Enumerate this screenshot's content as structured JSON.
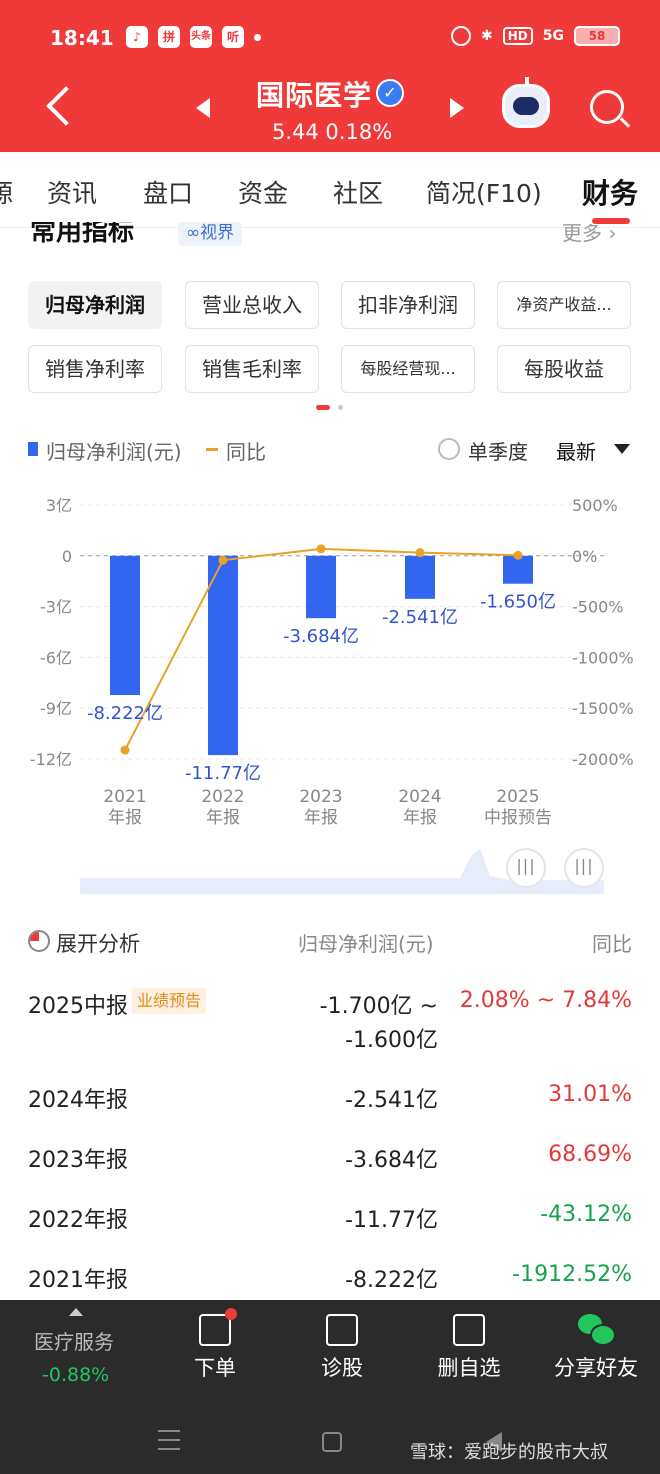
{
  "status": {
    "time": "18:41",
    "apps": [
      "♪",
      "拼",
      "头条",
      "听"
    ],
    "indicators": [
      "HD",
      "5G"
    ],
    "battery": "58"
  },
  "header": {
    "stock_name": "国际医学",
    "price_line": "5.44 0.18%"
  },
  "tabs": [
    "资讯",
    "盘口",
    "资金",
    "社区",
    "简况(F10)",
    "财务"
  ],
  "tab_partial": "源",
  "section": {
    "title": "常用指标",
    "badge": "∞视界",
    "more": "更多 ›"
  },
  "metrics": [
    "归母净利润",
    "营业总收入",
    "扣非净利润",
    "净资产收益...",
    "销售净利率",
    "销售毛利率",
    "每股经营现...",
    "每股收益"
  ],
  "legend": {
    "bar": "归母净利润(元)",
    "line": "同比",
    "quarter": "单季度",
    "latest": "最新"
  },
  "chart_data": {
    "type": "bar",
    "categories": [
      "2021\n年报",
      "2022\n年报",
      "2023\n年报",
      "2024\n年报",
      "2025\n中报预告"
    ],
    "category_years": [
      "2021",
      "2022",
      "2023",
      "2024",
      "2025"
    ],
    "category_labels": [
      "年报",
      "年报",
      "年报",
      "年报",
      "中报预告"
    ],
    "series": [
      {
        "name": "归母净利润(元)",
        "type": "bar",
        "axis": "left",
        "values": [
          -8.222,
          -11.77,
          -3.684,
          -2.541,
          -1.65
        ],
        "labels": [
          "-8.222亿",
          "-11.77亿",
          "-3.684亿",
          "-2.541亿",
          "-1.650亿"
        ],
        "color": "#3366ee"
      },
      {
        "name": "同比",
        "type": "line",
        "axis": "right",
        "values": [
          -1912.52,
          -43.12,
          68.69,
          31.01,
          4.96
        ],
        "color": "#e8a227"
      }
    ],
    "left_ticks": [
      3,
      0,
      -3,
      -6,
      -9,
      -12
    ],
    "left_tick_labels": [
      "3亿",
      "0",
      "-3亿",
      "-6亿",
      "-9亿",
      "-12亿"
    ],
    "right_ticks": [
      500,
      0,
      -500,
      -1000,
      -1500,
      -2000
    ],
    "right_tick_labels": [
      "500%",
      "0%",
      "-500%",
      "-1000%",
      "-1500%",
      "-2000%"
    ],
    "ylim_left": [
      -12,
      3
    ],
    "ylim_right": [
      -2000,
      500
    ]
  },
  "analysis": {
    "title": "展开分析",
    "col_value": "归母净利润(元)",
    "col_yoy": "同比",
    "rows": [
      {
        "label": "2025中报",
        "badge": "业绩预告",
        "value": "-1.700亿 ~",
        "value2": "-1.600亿",
        "yoy": "2.08% ~ 7.84%",
        "trend": "red"
      },
      {
        "label": "2024年报",
        "value": "-2.541亿",
        "yoy": "31.01%",
        "trend": "red"
      },
      {
        "label": "2023年报",
        "value": "-3.684亿",
        "yoy": "68.69%",
        "trend": "red"
      },
      {
        "label": "2022年报",
        "value": "-11.77亿",
        "yoy": "-43.12%",
        "trend": "green"
      },
      {
        "label": "2021年报",
        "value": "-8.222亿",
        "yoy": "-1912.52%",
        "trend": "green"
      }
    ]
  },
  "bottom": {
    "sector_name": "医疗服务",
    "sector_change": "-0.88%",
    "order": "下单",
    "diagnose": "诊股",
    "remove": "删自选",
    "share": "分享好友"
  },
  "watermark": "雪球：爱跑步的股市大叔"
}
